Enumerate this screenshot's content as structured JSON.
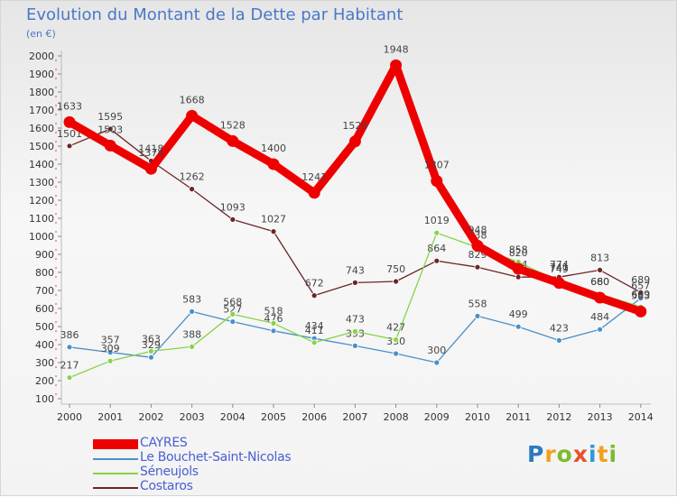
{
  "chart_data": {
    "type": "line",
    "title": "Evolution du Montant de la Dette par Habitant",
    "subtitle": "(en €)",
    "x": [
      "2000",
      "2001",
      "2002",
      "2003",
      "2004",
      "2005",
      "2006",
      "2007",
      "2008",
      "2009",
      "2010",
      "2011",
      "2012",
      "2013",
      "2014"
    ],
    "ylim": [
      100,
      2000
    ],
    "yticks": [
      100,
      200,
      300,
      400,
      500,
      600,
      700,
      800,
      900,
      1000,
      1100,
      1200,
      1300,
      1400,
      1500,
      1600,
      1700,
      1800,
      1900,
      2000
    ],
    "grid": false,
    "legend_position": "bottom-left",
    "series": [
      {
        "name": "CAYRES",
        "color": "#ee0000",
        "values": [
          1633,
          1503,
          1374,
          1668,
          1528,
          1400,
          1241,
          1526,
          1948,
          1307,
          948,
          820,
          741,
          660,
          583
        ]
      },
      {
        "name": "Le Bouchet-Saint-Nicolas",
        "color": "#4a90c8",
        "values": [
          386,
          357,
          329,
          583,
          527,
          476,
          434,
          393,
          350,
          300,
          558,
          499,
          423,
          484,
          657
        ]
      },
      {
        "name": "Séneujols",
        "color": "#86d34a",
        "values": [
          217,
          309,
          363,
          388,
          568,
          518,
          411,
          473,
          427,
          1019,
          938,
          858,
          749,
          680,
          609
        ]
      },
      {
        "name": "Costaros",
        "color": "#6e2424",
        "values": [
          1501,
          1595,
          1418,
          1262,
          1093,
          1027,
          672,
          743,
          750,
          864,
          829,
          774,
          774,
          813,
          689
        ]
      }
    ]
  },
  "logo_text": [
    "P",
    "r",
    "o",
    "x",
    "i",
    "t",
    "i"
  ]
}
